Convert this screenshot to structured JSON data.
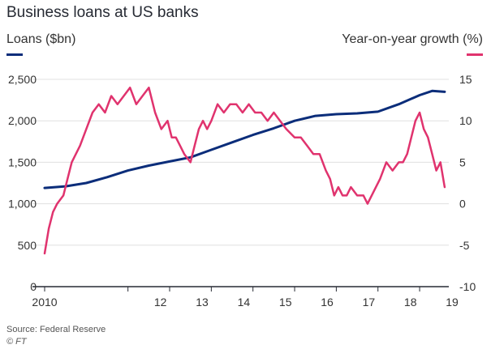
{
  "title": "Business loans at US banks",
  "source": "Source: Federal Reserve",
  "credit": "© FT",
  "colors": {
    "loans": "#0b2d7a",
    "growth": "#e0336e",
    "axis": "#262a33",
    "grid": "#e0e0e0"
  },
  "chart_data": {
    "type": "line",
    "title": "Business loans at US banks",
    "xlabel": "",
    "left_axis_label": "Loans ($bn)",
    "right_axis_label": "Year-on-year growth (%)",
    "x_tick_labels": [
      "2010",
      "12",
      "13",
      "14",
      "15",
      "16",
      "17",
      "18",
      "19"
    ],
    "x_tick_values": [
      2010,
      2012,
      2013,
      2014,
      2015,
      2016,
      2017,
      2018,
      2019
    ],
    "xlim": [
      2010,
      2019.7
    ],
    "ylim_left": [
      0,
      2500
    ],
    "ylim_right": [
      -10,
      15
    ],
    "y_ticks_left": [
      "2,500",
      "2,000",
      "1,500",
      "1,000",
      "500",
      "0"
    ],
    "y_ticks_right": [
      "15",
      "10",
      "5",
      "0",
      "-5",
      "-10"
    ],
    "grid": true,
    "series": [
      {
        "name": "Loans ($bn)",
        "axis": "left",
        "x": [
          2010.0,
          2010.5,
          2011.0,
          2011.5,
          2012.0,
          2012.5,
          2013.0,
          2013.5,
          2014.0,
          2014.5,
          2015.0,
          2015.5,
          2016.0,
          2016.5,
          2017.0,
          2017.5,
          2018.0,
          2018.5,
          2019.0,
          2019.3,
          2019.6
        ],
        "values": [
          1190,
          1210,
          1250,
          1320,
          1400,
          1460,
          1510,
          1560,
          1650,
          1740,
          1830,
          1910,
          2000,
          2060,
          2080,
          2090,
          2110,
          2200,
          2310,
          2360,
          2350
        ]
      },
      {
        "name": "Year-on-year growth (%)",
        "axis": "right",
        "x": [
          2010.0,
          2010.1,
          2010.2,
          2010.3,
          2010.45,
          2010.55,
          2010.65,
          2010.75,
          2010.85,
          2011.0,
          2011.15,
          2011.3,
          2011.45,
          2011.6,
          2011.75,
          2011.9,
          2012.05,
          2012.2,
          2012.35,
          2012.5,
          2012.65,
          2012.8,
          2012.95,
          2013.05,
          2013.15,
          2013.25,
          2013.35,
          2013.5,
          2013.6,
          2013.7,
          2013.8,
          2013.9,
          2014.0,
          2014.15,
          2014.3,
          2014.45,
          2014.6,
          2014.75,
          2014.9,
          2015.05,
          2015.2,
          2015.35,
          2015.5,
          2015.65,
          2015.8,
          2016.0,
          2016.15,
          2016.3,
          2016.45,
          2016.6,
          2016.75,
          2016.85,
          2016.95,
          2017.05,
          2017.15,
          2017.25,
          2017.35,
          2017.5,
          2017.65,
          2017.75,
          2017.85,
          2017.95,
          2018.05,
          2018.2,
          2018.35,
          2018.5,
          2018.6,
          2018.7,
          2018.8,
          2018.9,
          2019.0,
          2019.1,
          2019.2,
          2019.3,
          2019.4,
          2019.5,
          2019.6
        ],
        "values": [
          -6,
          -3,
          -1,
          0,
          1,
          3,
          5,
          6,
          7,
          9,
          11,
          12,
          11,
          13,
          12,
          13,
          14,
          12,
          13,
          14,
          11,
          9,
          10,
          8,
          8,
          7,
          6,
          5,
          7,
          9,
          10,
          9,
          10,
          12,
          11,
          12,
          12,
          11,
          12,
          11,
          11,
          10,
          11,
          10,
          9,
          8,
          8,
          7,
          6,
          6,
          4,
          3,
          1,
          2,
          1,
          1,
          2,
          1,
          1,
          0,
          1,
          2,
          3,
          5,
          4,
          5,
          5,
          6,
          8,
          10,
          11,
          9,
          8,
          6,
          4,
          5,
          2
        ]
      }
    ]
  }
}
